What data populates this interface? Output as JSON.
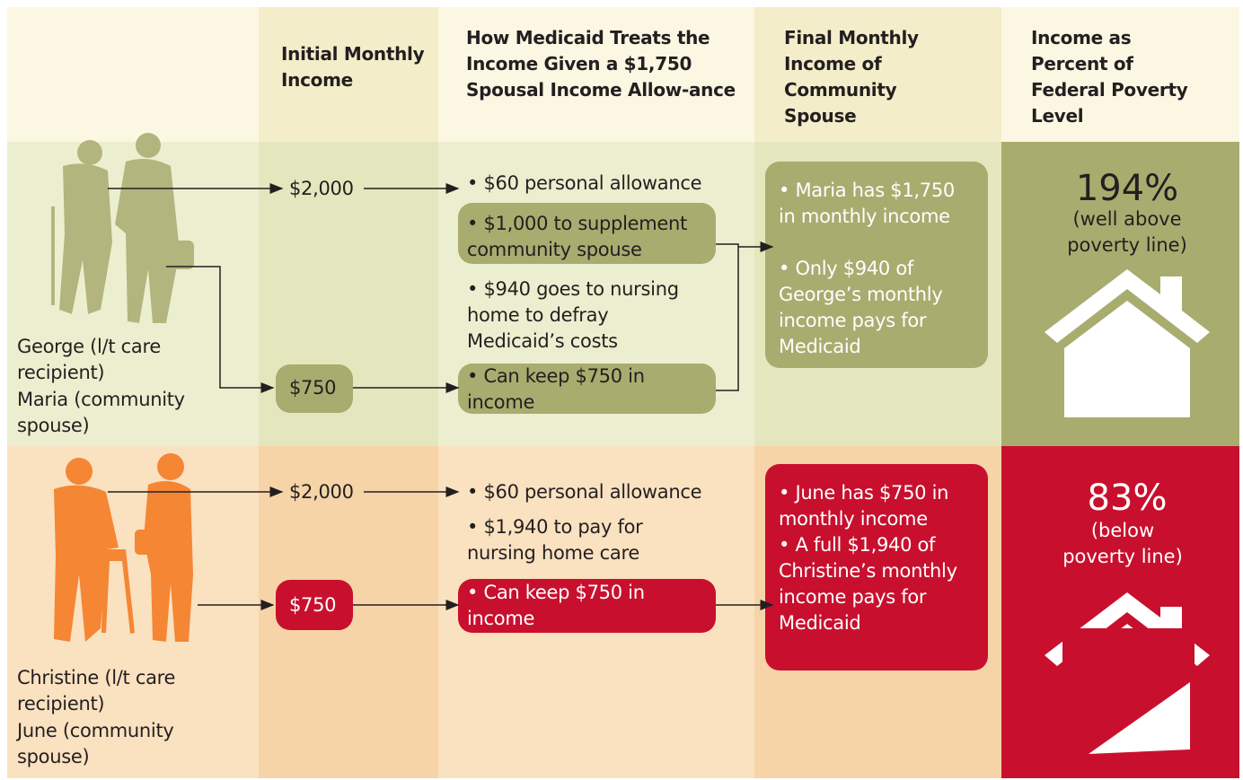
{
  "headers": [
    "Initial Monthly Income",
    "How Medicaid Treats the Income Given a $1,750 Spousal Income Allow-ance",
    "Final Monthly Income of Community Spouse",
    "Income as Percent of Federal Poverty Level"
  ],
  "rows": [
    {
      "people": [
        "George (l/t care recipient)",
        "Maria (community spouse)"
      ],
      "income_high": "$2,000",
      "income_low": "$750",
      "treatment": [
        "$60 personal allowance",
        "$1,000 to supplement community spouse",
        "$940 goes to nursing home to defray Medicaid’s costs",
        "Can keep $750 in income"
      ],
      "final": [
        "Maria has $1,750 in monthly income",
        "Only $940 of George’s monthly income pays for Medicaid"
      ],
      "percent": "194%",
      "note": "(well above poverty line)"
    },
    {
      "people": [
        "Christine (l/t care recipient)",
        "June (community spouse)"
      ],
      "income_high": "$2,000",
      "income_low": "$750",
      "treatment": [
        "$60 personal allowance",
        "$1,940 to pay for nursing home care",
        "Can keep $750 in income"
      ],
      "final": [
        "June has $750 in monthly income",
        "A full $1,940 of Christine’s monthly income pays for Medicaid"
      ],
      "percent": "83%",
      "note": "(below poverty line)"
    }
  ]
}
